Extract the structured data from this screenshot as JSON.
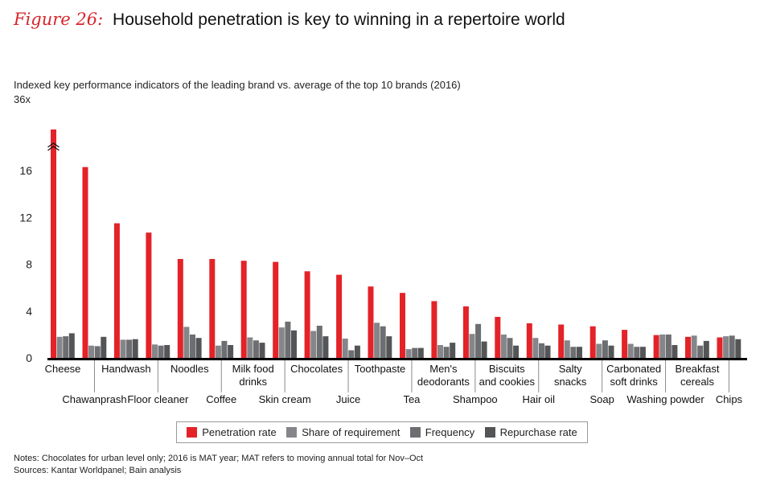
{
  "figure": {
    "number_label": "Figure 26:",
    "title": "Household penetration is key to winning in a repertoire world"
  },
  "notes": "Notes: Chocolates for urban level only; 2016 is MAT year; MAT refers to moving annual total for Nov–Oct",
  "sources": "Sources: Kantar Worldpanel; Bain analysis",
  "chart_data": {
    "type": "bar",
    "title": "Indexed key performance indicators of the leading brand vs. average of the top 10 brands (2016)",
    "xlabel": "",
    "ylabel": "",
    "ylim": [
      0,
      19
    ],
    "yticks": [
      0,
      4,
      8,
      12,
      16
    ],
    "ytick_labels": [
      "0",
      "4",
      "8",
      "12",
      "16"
    ],
    "axis_break": {
      "category": "Cheese",
      "series": "Penetration rate",
      "label": "36x",
      "actual_value": 36
    },
    "grid": false,
    "legend_position": "bottom",
    "categories": [
      "Cheese",
      "Chawanprash",
      "Handwash",
      "Floor cleaner",
      "Noodles",
      "Coffee",
      "Milk food drinks",
      "Skin cream",
      "Chocolates",
      "Juice",
      "Toothpaste",
      "Tea",
      "Men's deodorants",
      "Shampoo",
      "Biscuits and cookies",
      "Hair oil",
      "Salty snacks",
      "Soap",
      "Carbonated soft drinks",
      "Washing powder",
      "Breakfast cereals",
      "Chips"
    ],
    "category_label_lines": [
      [
        "Cheese"
      ],
      [
        "Chawanprash"
      ],
      [
        "Handwash"
      ],
      [
        "Floor cleaner"
      ],
      [
        "Noodles"
      ],
      [
        "Coffee"
      ],
      [
        "Milk food",
        "drinks"
      ],
      [
        "Skin cream"
      ],
      [
        "Chocolates"
      ],
      [
        "Juice"
      ],
      [
        "Toothpaste"
      ],
      [
        "Tea"
      ],
      [
        "Men's",
        "deodorants"
      ],
      [
        "Shampoo"
      ],
      [
        "Biscuits",
        "and cookies"
      ],
      [
        "Hair oil"
      ],
      [
        "Salty",
        "snacks"
      ],
      [
        "Soap"
      ],
      [
        "Carbonated",
        "soft drinks"
      ],
      [
        "Washing powder"
      ],
      [
        "Breakfast",
        "cereals"
      ],
      [
        "Chips"
      ]
    ],
    "series": [
      {
        "name": "Penetration rate",
        "color": "#e32328",
        "values": [
          36,
          16.3,
          11.5,
          10.7,
          8.45,
          8.45,
          8.3,
          8.2,
          7.4,
          7.1,
          6.1,
          5.55,
          4.85,
          4.4,
          3.5,
          2.95,
          2.85,
          2.7,
          2.4,
          1.95,
          1.8,
          1.75
        ]
      },
      {
        "name": "Share of requirement",
        "color": "#85868a",
        "values": [
          1.8,
          1.05,
          1.55,
          1.15,
          2.65,
          1.05,
          1.75,
          2.6,
          2.3,
          1.65,
          3.0,
          0.75,
          1.1,
          2.05,
          2.0,
          1.7,
          1.5,
          1.2,
          1.2,
          2.0,
          1.9,
          1.85
        ]
      },
      {
        "name": "Frequency",
        "color": "#6d6e71",
        "values": [
          1.85,
          1.0,
          1.55,
          1.05,
          2.0,
          1.45,
          1.5,
          3.1,
          2.75,
          0.65,
          2.7,
          0.85,
          0.95,
          2.9,
          1.7,
          1.25,
          0.95,
          1.5,
          0.95,
          2.0,
          1.05,
          1.9
        ]
      },
      {
        "name": "Repurchase rate",
        "color": "#545557",
        "values": [
          2.1,
          1.8,
          1.6,
          1.1,
          1.7,
          1.1,
          1.3,
          2.35,
          1.85,
          1.05,
          1.85,
          0.85,
          1.3,
          1.4,
          1.05,
          1.05,
          0.95,
          1.05,
          0.95,
          1.1,
          1.45,
          1.6
        ]
      }
    ]
  }
}
